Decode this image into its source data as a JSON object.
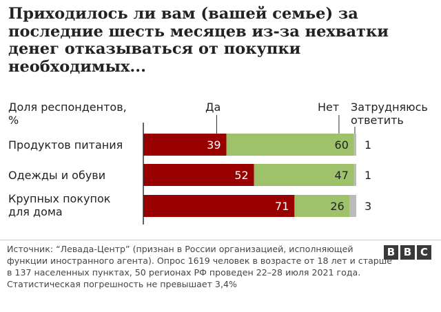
{
  "chart_data": {
    "type": "bar",
    "stacked": true,
    "orientation": "horizontal",
    "title": "Приходилось ли вам (вашей семье) за последние шесть месяцев из-за нехватки денег отказываться от покупки необходимых...",
    "ylabel": "Доля респондентов, %",
    "categories": [
      "Продуктов питания",
      "Одежды и обуви",
      "Крупных покупок для дома"
    ],
    "series": [
      {
        "name": "Да",
        "values": [
          39,
          52,
          71
        ],
        "color": "#990000"
      },
      {
        "name": "Нет",
        "values": [
          60,
          47,
          26
        ],
        "color": "#9ec26a"
      },
      {
        "name": "Затрудняюсь ответить",
        "values": [
          1,
          1,
          3
        ],
        "color": "#bbbbbb"
      }
    ],
    "xlim": [
      0,
      100
    ]
  },
  "source": "Источник: “Левада-Центр” (признан в России организацией, исполняющей функции иностранного агента). Опрос 1619 человек в возрасте от 18 лет и старше в 137 населенных пунктах, 50 регионах РФ проведен 22–28 июля 2021 года. Статистическая погрешность не превышает 3,4%",
  "logo": {
    "letters": [
      "B",
      "B",
      "C"
    ]
  }
}
